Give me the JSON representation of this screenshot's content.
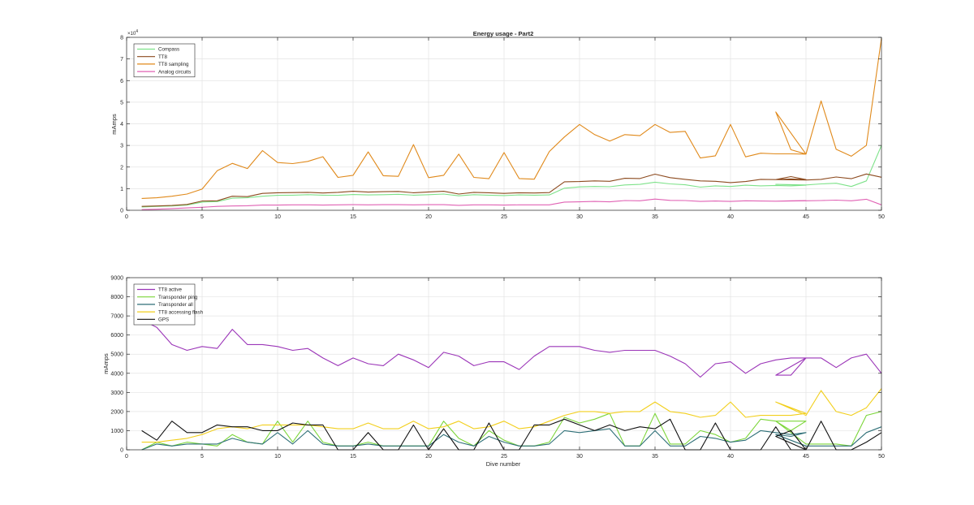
{
  "chart_data": [
    {
      "type": "line",
      "title": "Energy usage - Part2",
      "xlabel": "",
      "ylabel": "mAmps",
      "y_exponent": "×10",
      "y_exponent_power": "4",
      "xlim": [
        0,
        50
      ],
      "ylim": [
        0,
        80000
      ],
      "xticks": [
        0,
        5,
        10,
        15,
        20,
        25,
        30,
        35,
        40,
        45,
        50
      ],
      "yticks": [
        0,
        10000,
        20000,
        30000,
        40000,
        50000,
        60000,
        70000,
        80000
      ],
      "ytick_labels": [
        "0",
        "1",
        "2",
        "3",
        "4",
        "5",
        "6",
        "7",
        "8"
      ],
      "grid": true,
      "legend_position": "top-left",
      "series": [
        {
          "name": "Compass",
          "color": "#7ee28a",
          "x": [
            1,
            2,
            3,
            4,
            5,
            6,
            7,
            8,
            9,
            10,
            11,
            12,
            13,
            14,
            15,
            16,
            17,
            18,
            19,
            20,
            21,
            22,
            23,
            24,
            25,
            26,
            27,
            28,
            29,
            30,
            31,
            32,
            33,
            34,
            35,
            36,
            37,
            38,
            39,
            40,
            41,
            42,
            43,
            44,
            45,
            44,
            43,
            45,
            46,
            47,
            48,
            49,
            50
          ],
          "y": [
            1500,
            1800,
            2000,
            2400,
            3800,
            4000,
            5600,
            5800,
            6500,
            6900,
            7000,
            7200,
            7000,
            6900,
            7300,
            7100,
            7200,
            7400,
            7000,
            7200,
            7500,
            6700,
            7200,
            7000,
            6800,
            7100,
            7000,
            7100,
            10200,
            10800,
            11000,
            10900,
            11700,
            12000,
            13000,
            12200,
            11800,
            10700,
            11300,
            11000,
            11600,
            11300,
            11500,
            11300,
            11600,
            11800,
            12000,
            11700,
            12200,
            12500,
            11000,
            13600,
            30000
          ]
        },
        {
          "name": "TT8",
          "color": "#8c4a1e",
          "x": [
            1,
            2,
            3,
            4,
            5,
            6,
            7,
            8,
            9,
            10,
            11,
            12,
            13,
            14,
            15,
            16,
            17,
            18,
            19,
            20,
            21,
            22,
            23,
            24,
            25,
            26,
            27,
            28,
            29,
            30,
            31,
            32,
            33,
            34,
            35,
            36,
            37,
            38,
            39,
            40,
            41,
            42,
            43,
            44,
            45,
            44,
            43,
            45,
            46,
            47,
            48,
            49,
            50
          ],
          "y": [
            1800,
            2000,
            2200,
            2700,
            4300,
            4400,
            6500,
            6300,
            7800,
            8100,
            8200,
            8300,
            8000,
            8300,
            8800,
            8400,
            8600,
            8700,
            8100,
            8500,
            8800,
            7500,
            8300,
            8100,
            7800,
            8100,
            8000,
            8200,
            13200,
            13300,
            13600,
            13400,
            14800,
            14700,
            16700,
            15100,
            14300,
            13600,
            13400,
            12800,
            13300,
            14300,
            14200,
            15600,
            14200,
            14500,
            14200,
            14000,
            14300,
            15400,
            14600,
            16800,
            15300
          ]
        },
        {
          "name": "TT8 sampling",
          "color": "#e0891a",
          "x": [
            1,
            2,
            3,
            4,
            5,
            6,
            7,
            8,
            9,
            10,
            11,
            12,
            13,
            14,
            15,
            16,
            17,
            18,
            19,
            20,
            21,
            22,
            23,
            24,
            25,
            26,
            27,
            28,
            29,
            30,
            31,
            32,
            33,
            34,
            35,
            36,
            37,
            38,
            39,
            40,
            41,
            42,
            43,
            44,
            45,
            44,
            43,
            45,
            46,
            47,
            48,
            49,
            50
          ],
          "y": [
            5500,
            5800,
            6500,
            7500,
            9800,
            18300,
            21700,
            19300,
            27600,
            22100,
            21600,
            22600,
            24800,
            15200,
            16200,
            27000,
            16000,
            15700,
            30400,
            15100,
            16200,
            26000,
            15200,
            14600,
            26700,
            14700,
            14400,
            27200,
            33900,
            39700,
            35000,
            32000,
            35000,
            34500,
            39700,
            36000,
            36500,
            24200,
            25200,
            39700,
            24700,
            26400,
            26100,
            26100,
            26000,
            28000,
            45500,
            26000,
            50600,
            28200,
            25000,
            30000,
            79600
          ]
        },
        {
          "name": "Analog circuits",
          "color": "#e062b4",
          "x": [
            1,
            2,
            3,
            4,
            5,
            6,
            7,
            8,
            9,
            10,
            11,
            12,
            13,
            14,
            15,
            16,
            17,
            18,
            19,
            20,
            21,
            22,
            23,
            24,
            25,
            26,
            27,
            28,
            29,
            30,
            31,
            32,
            33,
            34,
            35,
            36,
            37,
            38,
            39,
            40,
            41,
            42,
            43,
            44,
            45,
            44,
            43,
            45,
            46,
            47,
            48,
            49,
            50
          ],
          "y": [
            300,
            500,
            800,
            1100,
            1400,
            1800,
            2000,
            2100,
            2400,
            2400,
            2500,
            2500,
            2400,
            2500,
            2600,
            2500,
            2600,
            2600,
            2500,
            2600,
            2600,
            2300,
            2500,
            2500,
            2400,
            2500,
            2500,
            2500,
            3800,
            3900,
            4100,
            3900,
            4500,
            4400,
            5200,
            4600,
            4500,
            4100,
            4300,
            4100,
            4400,
            4300,
            4200,
            4400,
            4500,
            4400,
            4200,
            4400,
            4500,
            4700,
            4400,
            5100,
            2500
          ]
        }
      ]
    },
    {
      "type": "line",
      "title": "",
      "xlabel": "Dive number",
      "ylabel": "mAmps",
      "xlim": [
        0,
        50
      ],
      "ylim": [
        0,
        9000
      ],
      "xticks": [
        0,
        5,
        10,
        15,
        20,
        25,
        30,
        35,
        40,
        45,
        50
      ],
      "yticks": [
        0,
        1000,
        2000,
        3000,
        4000,
        5000,
        6000,
        7000,
        8000,
        9000
      ],
      "ytick_labels": [
        "0",
        "1000",
        "2000",
        "3000",
        "4000",
        "5000",
        "6000",
        "7000",
        "8000",
        "9000"
      ],
      "grid": true,
      "legend_position": "top-left",
      "series": [
        {
          "name": "TT8 active",
          "color": "#9b35b8",
          "x": [
            1,
            2,
            3,
            4,
            5,
            6,
            7,
            8,
            9,
            10,
            11,
            12,
            13,
            14,
            15,
            16,
            17,
            18,
            19,
            20,
            21,
            22,
            23,
            24,
            25,
            26,
            27,
            28,
            29,
            30,
            31,
            32,
            33,
            34,
            35,
            36,
            37,
            38,
            39,
            40,
            41,
            42,
            43,
            44,
            45,
            44,
            43,
            45,
            46,
            47,
            48,
            49,
            50
          ],
          "y": [
            6800,
            6400,
            5500,
            5200,
            5400,
            5300,
            6300,
            5500,
            5500,
            5400,
            5200,
            5300,
            4800,
            4400,
            4800,
            4500,
            4400,
            5000,
            4700,
            4300,
            5100,
            4900,
            4400,
            4600,
            4600,
            4200,
            4900,
            5400,
            5400,
            5400,
            5200,
            5100,
            5200,
            5200,
            5200,
            4900,
            4500,
            3800,
            4500,
            4600,
            4000,
            4500,
            4700,
            4800,
            4800,
            3900,
            3900,
            4800,
            4800,
            4300,
            4800,
            5000,
            4000
          ]
        },
        {
          "name": "Transponder ping",
          "color": "#7cd63a",
          "x": [
            1,
            2,
            3,
            4,
            5,
            6,
            7,
            8,
            9,
            10,
            11,
            12,
            13,
            14,
            15,
            16,
            17,
            18,
            19,
            20,
            21,
            22,
            23,
            24,
            25,
            26,
            27,
            28,
            29,
            30,
            31,
            32,
            33,
            34,
            35,
            36,
            37,
            38,
            39,
            40,
            41,
            42,
            43,
            44,
            45,
            44,
            43,
            45,
            46,
            47,
            48,
            49,
            50
          ],
          "y": [
            0,
            400,
            200,
            400,
            300,
            200,
            800,
            400,
            300,
            1500,
            400,
            1500,
            400,
            200,
            200,
            400,
            200,
            200,
            200,
            200,
            1500,
            600,
            200,
            1000,
            500,
            200,
            200,
            400,
            1700,
            1400,
            1600,
            1900,
            200,
            200,
            1900,
            300,
            300,
            1000,
            800,
            400,
            600,
            1600,
            1500,
            1500,
            1500,
            1000,
            1500,
            300,
            300,
            300,
            200,
            1800,
            2000
          ]
        },
        {
          "name": "Transponder all",
          "color": "#2e6f77",
          "x": [
            1,
            2,
            3,
            4,
            5,
            6,
            7,
            8,
            9,
            10,
            11,
            12,
            13,
            14,
            15,
            16,
            17,
            18,
            19,
            20,
            21,
            22,
            23,
            24,
            25,
            26,
            27,
            28,
            29,
            30,
            31,
            32,
            33,
            34,
            35,
            36,
            37,
            38,
            39,
            40,
            41,
            42,
            43,
            44,
            45,
            44,
            43,
            45,
            46,
            47,
            48,
            49,
            50
          ],
          "y": [
            0,
            300,
            200,
            300,
            300,
            300,
            600,
            400,
            300,
            900,
            300,
            1000,
            300,
            200,
            200,
            300,
            200,
            200,
            200,
            200,
            800,
            400,
            200,
            700,
            400,
            200,
            200,
            300,
            1000,
            900,
            1000,
            1100,
            200,
            200,
            1000,
            200,
            200,
            700,
            600,
            400,
            500,
            1000,
            900,
            800,
            900,
            700,
            800,
            200,
            200,
            200,
            200,
            900,
            1200
          ]
        },
        {
          "name": "TT8 accessing flash",
          "color": "#f2cf1c",
          "x": [
            1,
            2,
            3,
            4,
            5,
            6,
            7,
            8,
            9,
            10,
            11,
            12,
            13,
            14,
            15,
            16,
            17,
            18,
            19,
            20,
            21,
            22,
            23,
            24,
            25,
            26,
            27,
            28,
            29,
            30,
            31,
            32,
            33,
            34,
            35,
            36,
            37,
            38,
            39,
            40,
            41,
            42,
            43,
            44,
            45,
            44,
            43,
            45,
            46,
            47,
            48,
            49,
            50
          ],
          "y": [
            400,
            400,
            500,
            600,
            800,
            1100,
            1200,
            1100,
            1300,
            1300,
            1300,
            1300,
            1200,
            1100,
            1100,
            1400,
            1100,
            1100,
            1500,
            1100,
            1200,
            1500,
            1100,
            1200,
            1500,
            1100,
            1200,
            1500,
            1800,
            2000,
            2000,
            1900,
            2000,
            2000,
            2500,
            2000,
            1900,
            1700,
            1800,
            2500,
            1700,
            1800,
            1800,
            1800,
            1900,
            2200,
            2500,
            1800,
            3100,
            2000,
            1800,
            2200,
            3200
          ]
        },
        {
          "name": "GPS",
          "color": "#111111",
          "x": [
            1,
            2,
            3,
            4,
            5,
            6,
            7,
            8,
            9,
            10,
            11,
            12,
            13,
            14,
            15,
            16,
            17,
            18,
            19,
            20,
            21,
            22,
            23,
            24,
            25,
            26,
            27,
            28,
            29,
            30,
            31,
            32,
            33,
            34,
            35,
            36,
            37,
            38,
            39,
            40,
            41,
            42,
            43,
            44,
            45,
            44,
            43,
            45,
            46,
            47,
            48,
            49,
            50
          ],
          "y": [
            1000,
            500,
            1500,
            900,
            900,
            1300,
            1200,
            1200,
            1000,
            1000,
            1400,
            1300,
            1300,
            0,
            0,
            900,
            0,
            0,
            1300,
            0,
            1100,
            0,
            0,
            1400,
            0,
            0,
            1300,
            1300,
            1600,
            1300,
            1000,
            1300,
            1000,
            1200,
            1100,
            1600,
            0,
            0,
            1400,
            0,
            0,
            0,
            1200,
            0,
            0,
            1000,
            700,
            0,
            1500,
            0,
            0,
            400,
            900
          ]
        }
      ]
    }
  ]
}
